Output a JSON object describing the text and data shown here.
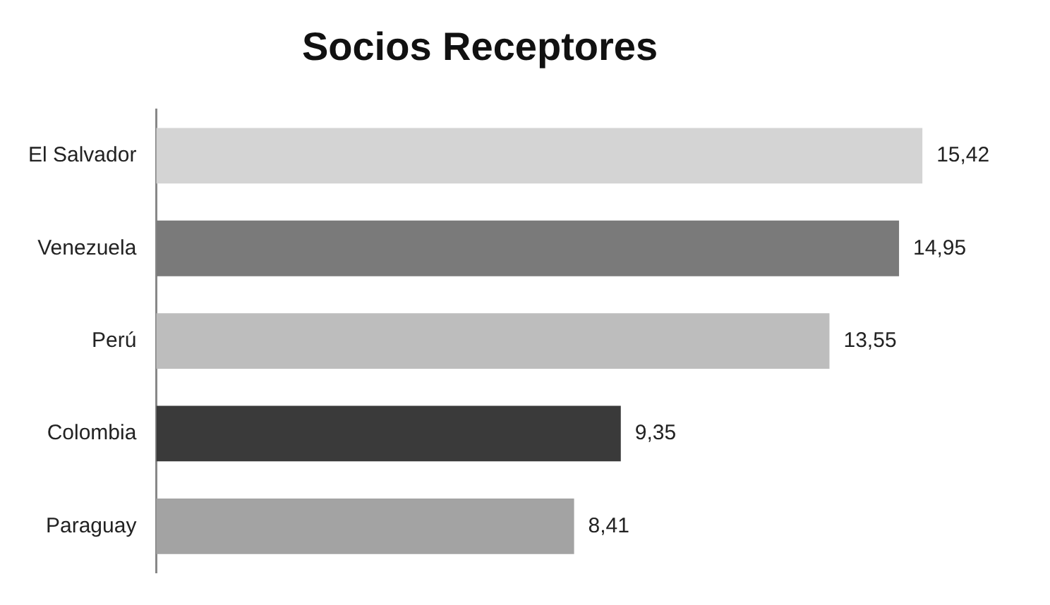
{
  "chart_data": {
    "type": "bar",
    "orientation": "horizontal",
    "title": "Socios Receptores",
    "categories": [
      "El Salvador",
      "Venezuela",
      "Perú",
      "Colombia",
      "Paraguay"
    ],
    "values": [
      15.42,
      14.95,
      13.55,
      9.35,
      8.41
    ],
    "colors": [
      "#d4d4d4",
      "#7a7a7a",
      "#bdbdbd",
      "#3a3a3a",
      "#a3a3a3"
    ],
    "value_labels": [
      "15,42",
      "14,95",
      "13,55",
      "9,35",
      "8,41"
    ],
    "legend": false
  }
}
